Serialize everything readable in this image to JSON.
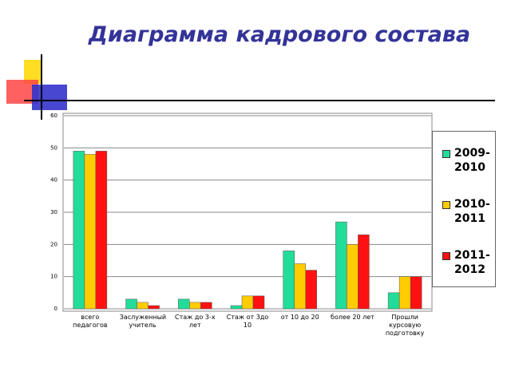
{
  "chart_data": {
    "type": "bar",
    "title": "Диаграмма кадрового состава",
    "categories": [
      "всего педагогов",
      "Заслуженный учитель",
      "Стаж до 3-х лет",
      "Стаж от 3до 10",
      "от 10 до 20",
      "более 20 лет",
      "Прошли курсовую подготовку"
    ],
    "series": [
      {
        "name": "2009-2010",
        "color": "#22dd99",
        "values": [
          49,
          3,
          3,
          1,
          18,
          27,
          5
        ]
      },
      {
        "name": "2010-2011",
        "color": "#ffcc00",
        "values": [
          48,
          2,
          2,
          4,
          14,
          20,
          10
        ]
      },
      {
        "name": "2011-2012",
        "color": "#ff1111",
        "values": [
          49,
          1,
          2,
          4,
          12,
          23,
          10
        ]
      }
    ],
    "ylim": [
      0,
      60
    ],
    "yticks": [
      0,
      10,
      20,
      30,
      40,
      50,
      60
    ],
    "grid": true,
    "legend": "right"
  }
}
